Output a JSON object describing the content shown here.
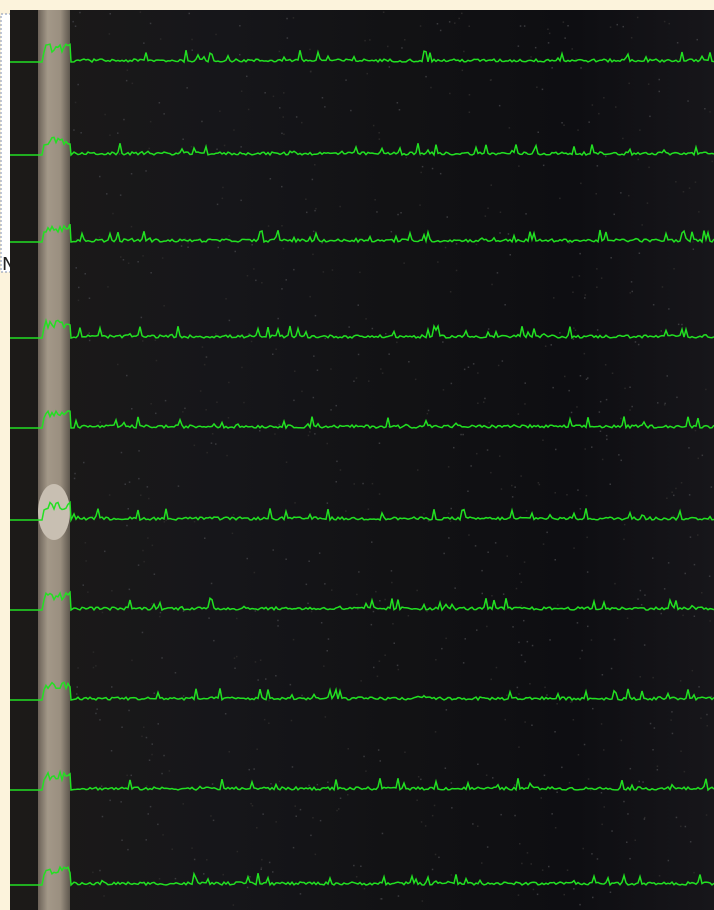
{
  "panel": {
    "edge_text": "N"
  }
}
